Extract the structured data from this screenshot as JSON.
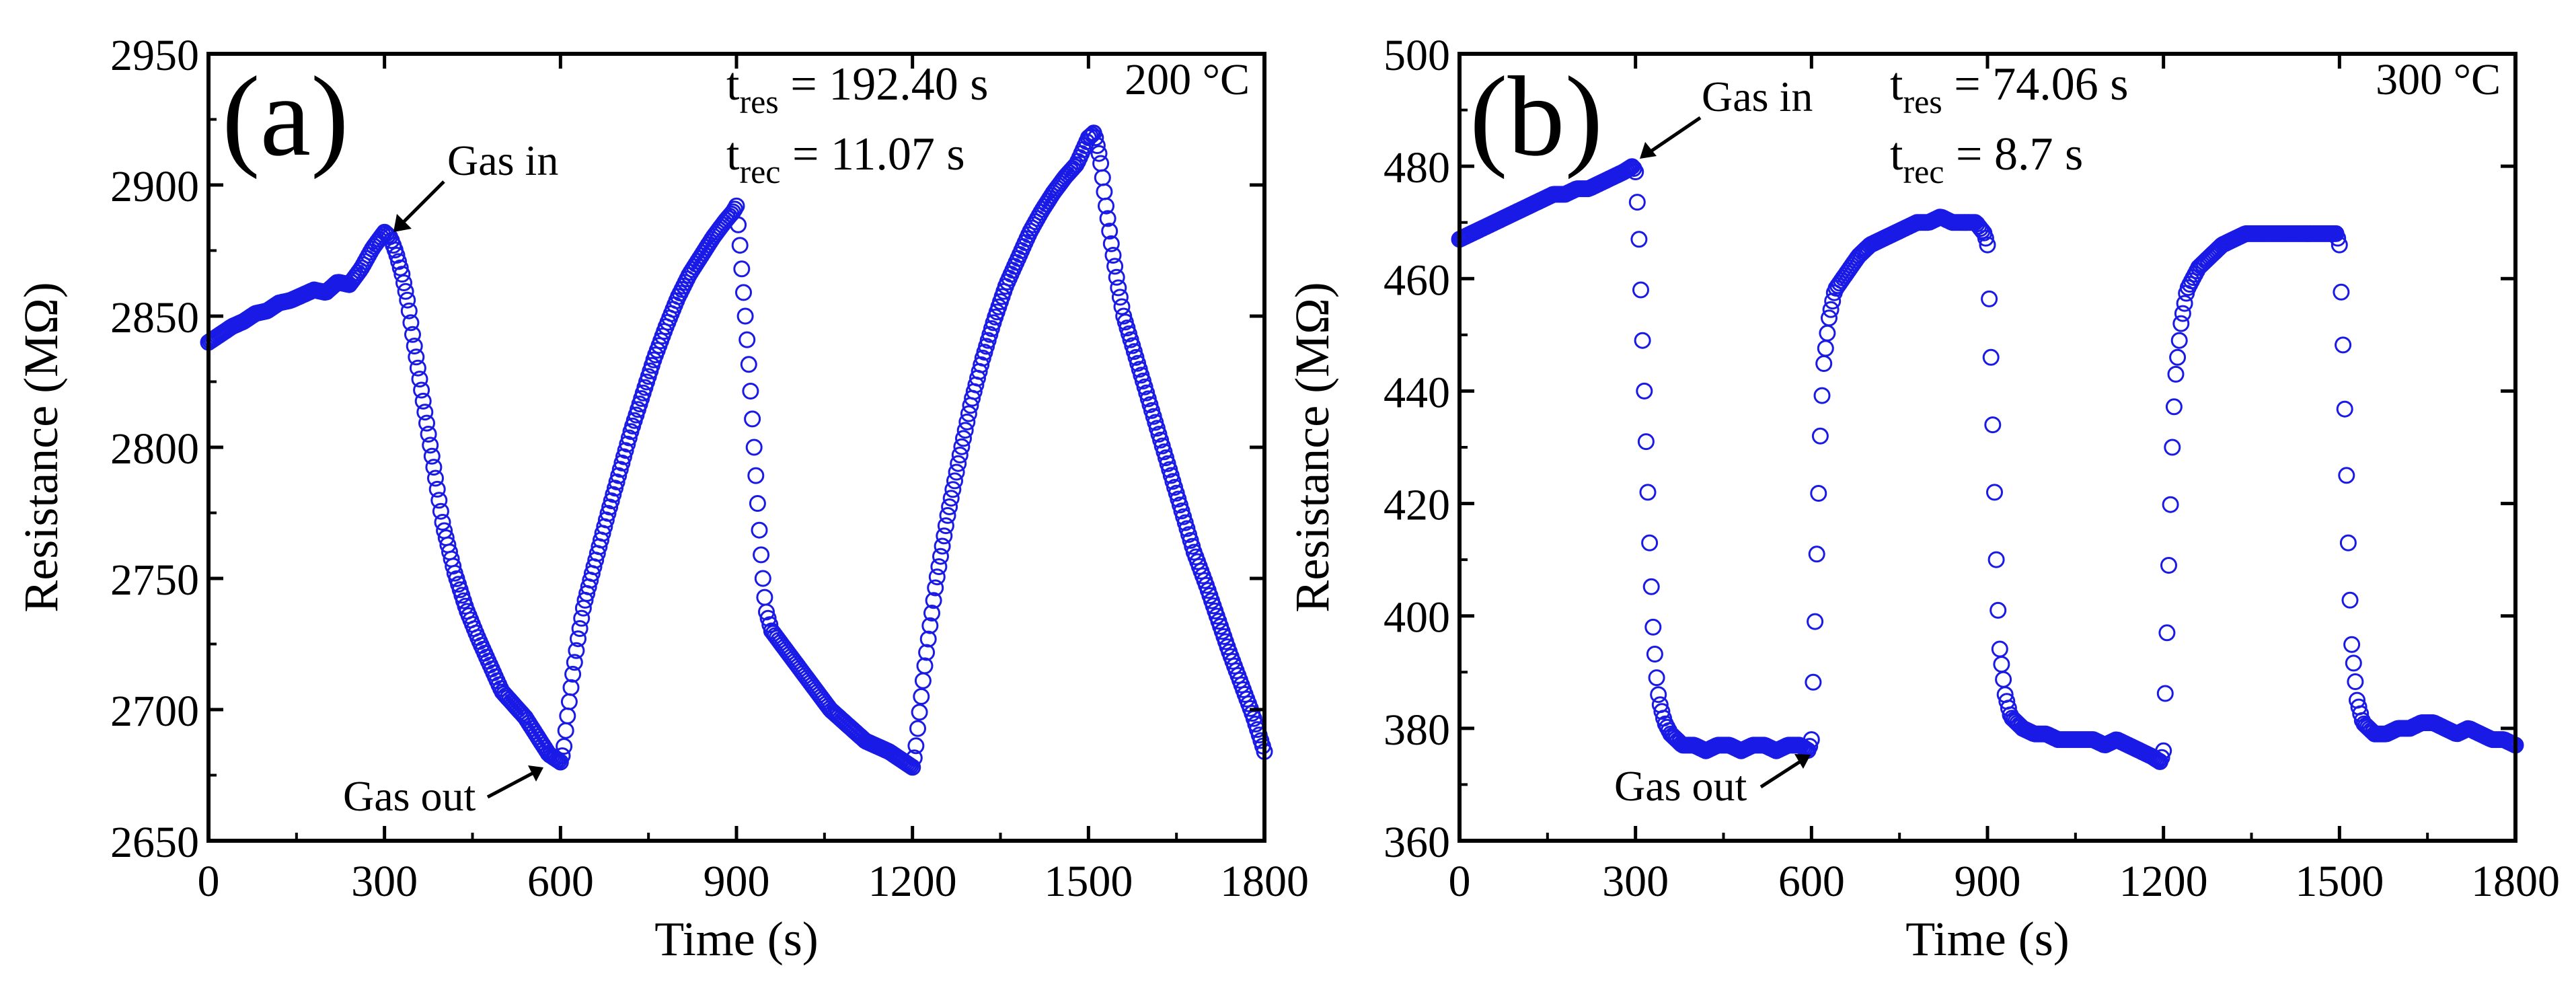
{
  "colors": {
    "marker": "#1a1ae6",
    "axis": "#000000",
    "background": "#ffffff"
  },
  "chart_data": [
    {
      "type": "scatter",
      "panel_label": "(a)",
      "temperature": "200 °C",
      "xlabel": "Time (s)",
      "ylabel": "Resistance (MΩ)",
      "xlim": [
        0,
        1800
      ],
      "ylim": [
        2650,
        2950
      ],
      "xticks": [
        0,
        300,
        600,
        900,
        1200,
        1500,
        1800
      ],
      "yticks": [
        2650,
        2700,
        2750,
        2800,
        2850,
        2900,
        2950
      ],
      "response_time": {
        "base": "t",
        "sub": "res",
        "value": " = 192.40 s"
      },
      "recovery_time": {
        "base": "t",
        "sub": "rec",
        "value": " = 11.07 s"
      },
      "annotations": [
        {
          "text": "Gas in",
          "x": 300,
          "y": 2882
        },
        {
          "text": "Gas out",
          "x": 600,
          "y": 2680
        }
      ],
      "series": [
        {
          "name": "Resistance",
          "marker": "open-circle",
          "x": [
            0,
            20,
            40,
            60,
            80,
            100,
            120,
            140,
            160,
            180,
            200,
            220,
            240,
            260,
            280,
            300,
            310,
            320,
            330,
            340,
            350,
            360,
            380,
            400,
            420,
            440,
            460,
            480,
            500,
            520,
            540,
            560,
            580,
            600,
            605,
            610,
            620,
            630,
            640,
            660,
            680,
            700,
            720,
            740,
            760,
            780,
            800,
            820,
            840,
            860,
            880,
            895,
            900,
            905,
            910,
            915,
            920,
            925,
            930,
            935,
            940,
            945,
            950,
            960,
            980,
            1000,
            1020,
            1040,
            1060,
            1080,
            1100,
            1120,
            1140,
            1160,
            1180,
            1200,
            1205,
            1210,
            1220,
            1230,
            1240,
            1260,
            1280,
            1300,
            1320,
            1340,
            1360,
            1380,
            1400,
            1420,
            1440,
            1460,
            1480,
            1490,
            1500,
            1510,
            1520,
            1530,
            1540,
            1550,
            1560,
            1580,
            1600,
            1620,
            1640,
            1660,
            1680,
            1700,
            1720,
            1740,
            1760,
            1780,
            1800
          ],
          "y": [
            2840,
            2843,
            2846,
            2848,
            2851,
            2852,
            2855,
            2856,
            2858,
            2860,
            2859,
            2863,
            2862,
            2868,
            2876,
            2882,
            2880,
            2874,
            2866,
            2855,
            2840,
            2826,
            2798,
            2770,
            2752,
            2738,
            2727,
            2717,
            2707,
            2702,
            2697,
            2690,
            2683,
            2680,
            2684,
            2694,
            2712,
            2727,
            2740,
            2757,
            2774,
            2790,
            2806,
            2820,
            2834,
            2846,
            2857,
            2866,
            2873,
            2880,
            2886,
            2890,
            2892,
            2880,
            2865,
            2850,
            2835,
            2818,
            2800,
            2782,
            2765,
            2750,
            2738,
            2730,
            2724,
            2718,
            2712,
            2706,
            2700,
            2696,
            2692,
            2688,
            2686,
            2684,
            2681,
            2678,
            2684,
            2695,
            2715,
            2732,
            2748,
            2774,
            2796,
            2817,
            2834,
            2849,
            2862,
            2872,
            2882,
            2890,
            2897,
            2903,
            2908,
            2913,
            2918,
            2920,
            2910,
            2892,
            2876,
            2862,
            2850,
            2835,
            2820,
            2805,
            2790,
            2775,
            2760,
            2748,
            2735,
            2722,
            2710,
            2698,
            2684
          ]
        }
      ]
    },
    {
      "type": "scatter",
      "panel_label": "(b)",
      "temperature": "300 °C",
      "xlabel": "Time (s)",
      "ylabel": "Resistance (MΩ)",
      "xlim": [
        0,
        1800
      ],
      "ylim": [
        360,
        500
      ],
      "xticks": [
        0,
        300,
        600,
        900,
        1200,
        1500,
        1800
      ],
      "yticks": [
        360,
        380,
        400,
        420,
        440,
        460,
        480,
        500
      ],
      "response_time": {
        "base": "t",
        "sub": "res",
        "value": " = 74.06 s"
      },
      "recovery_time": {
        "base": "t",
        "sub": "rec",
        "value": " = 8.7 s"
      },
      "annotations": [
        {
          "text": "Gas in",
          "x": 300,
          "y": 480
        },
        {
          "text": "Gas out",
          "x": 598,
          "y": 376
        }
      ],
      "series": [
        {
          "name": "Resistance",
          "marker": "open-circle",
          "x": [
            0,
            20,
            40,
            60,
            80,
            100,
            120,
            140,
            160,
            180,
            200,
            220,
            240,
            260,
            280,
            295,
            300,
            305,
            310,
            315,
            320,
            325,
            330,
            335,
            340,
            350,
            360,
            370,
            380,
            400,
            420,
            440,
            460,
            480,
            500,
            520,
            540,
            560,
            580,
            595,
            600,
            605,
            610,
            615,
            620,
            630,
            640,
            660,
            680,
            700,
            720,
            740,
            760,
            780,
            800,
            820,
            840,
            860,
            880,
            895,
            900,
            905,
            910,
            915,
            920,
            930,
            940,
            960,
            980,
            1000,
            1020,
            1040,
            1060,
            1080,
            1100,
            1120,
            1140,
            1160,
            1180,
            1195,
            1200,
            1205,
            1210,
            1215,
            1220,
            1230,
            1240,
            1260,
            1280,
            1300,
            1320,
            1340,
            1360,
            1380,
            1400,
            1420,
            1440,
            1460,
            1480,
            1495,
            1500,
            1505,
            1510,
            1515,
            1520,
            1530,
            1540,
            1560,
            1580,
            1600,
            1620,
            1640,
            1660,
            1680,
            1700,
            1720,
            1740,
            1760,
            1780,
            1800
          ],
          "y": [
            467,
            468,
            469,
            470,
            471,
            472,
            473,
            474,
            475,
            475,
            476,
            476,
            477,
            478,
            479,
            480,
            479,
            470,
            455,
            440,
            425,
            410,
            398,
            390,
            385,
            381,
            379,
            378,
            377,
            377,
            376,
            377,
            377,
            376,
            377,
            377,
            376,
            377,
            377,
            376,
            378,
            395,
            415,
            432,
            444,
            453,
            458,
            461,
            464,
            466,
            467,
            468,
            469,
            470,
            470,
            471,
            470,
            470,
            470,
            468,
            466,
            450,
            430,
            410,
            395,
            386,
            382,
            380,
            379,
            379,
            378,
            378,
            378,
            378,
            377,
            378,
            377,
            376,
            375,
            374,
            376,
            393,
            413,
            430,
            442,
            452,
            458,
            462,
            464,
            466,
            467,
            468,
            468,
            468,
            468,
            468,
            468,
            468,
            468,
            468,
            466,
            452,
            433,
            413,
            396,
            385,
            381,
            379,
            379,
            380,
            380,
            381,
            381,
            380,
            379,
            380,
            379,
            378,
            378,
            377
          ]
        }
      ]
    }
  ]
}
